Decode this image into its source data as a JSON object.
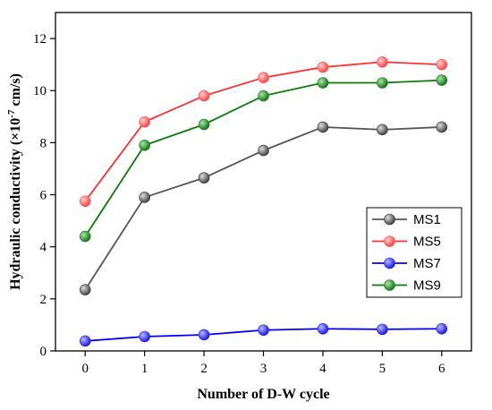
{
  "chart_data": {
    "type": "line",
    "title": "",
    "xlabel": "Number of D-W cycle",
    "ylabel_parts": {
      "prefix": "Hydraulic conductivity (×10",
      "exponent": "-7",
      "suffix": " cm/s)"
    },
    "x": [
      0,
      1,
      2,
      3,
      4,
      5,
      6
    ],
    "xlim": [
      -0.5,
      6.5
    ],
    "ylim": [
      0,
      13
    ],
    "x_ticks": [
      0,
      1,
      2,
      3,
      4,
      5,
      6
    ],
    "y_ticks": [
      0,
      2,
      4,
      6,
      8,
      10,
      12
    ],
    "grid": false,
    "legend_position": "right",
    "series": [
      {
        "name": "MS1",
        "color": "#3a3a3a",
        "line_color": "#555555",
        "values": [
          2.35,
          5.9,
          6.65,
          7.7,
          8.6,
          8.5,
          8.6
        ]
      },
      {
        "name": "MS5",
        "color": "#ff5a5a",
        "line_color": "#ff3030",
        "values": [
          5.75,
          8.8,
          9.8,
          10.5,
          10.9,
          11.1,
          11.0
        ]
      },
      {
        "name": "MS7",
        "color": "#2a2aff",
        "line_color": "#0000ff",
        "values": [
          0.38,
          0.55,
          0.62,
          0.8,
          0.85,
          0.83,
          0.85
        ]
      },
      {
        "name": "MS9",
        "color": "#1c8a1c",
        "line_color": "#0a7a0a",
        "values": [
          4.4,
          7.9,
          8.7,
          9.8,
          10.3,
          10.3,
          10.4
        ]
      }
    ]
  }
}
